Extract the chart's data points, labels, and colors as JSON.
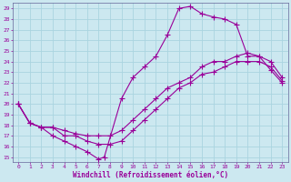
{
  "xlabel": "Windchill (Refroidissement éolien,°C)",
  "bg_color": "#cce8f0",
  "grid_color": "#aad4e0",
  "line_color": "#990099",
  "xlim": [
    -0.5,
    23.5
  ],
  "ylim": [
    14.5,
    29.5
  ],
  "xticks": [
    0,
    1,
    2,
    3,
    4,
    5,
    6,
    7,
    8,
    9,
    10,
    11,
    12,
    13,
    14,
    15,
    16,
    17,
    18,
    19,
    20,
    21,
    22,
    23
  ],
  "yticks": [
    15,
    16,
    17,
    18,
    19,
    20,
    21,
    22,
    23,
    24,
    25,
    26,
    27,
    28,
    29
  ],
  "line1_x": [
    0,
    1,
    2,
    3,
    4,
    5,
    6,
    7,
    7.5,
    9,
    10,
    11,
    12,
    13,
    14,
    15,
    16,
    17,
    18,
    19,
    20,
    21,
    22,
    23
  ],
  "line1_y": [
    20.0,
    18.2,
    17.8,
    17.0,
    16.5,
    16.0,
    15.5,
    14.8,
    15.0,
    20.5,
    22.5,
    23.5,
    24.5,
    26.5,
    29.0,
    29.2,
    28.5,
    28.2,
    28.0,
    27.5,
    24.5,
    24.5,
    23.2,
    22.0
  ],
  "line2_x": [
    0,
    1,
    2,
    3,
    4,
    5,
    6,
    7,
    8,
    9,
    10,
    11,
    12,
    13,
    14,
    15,
    16,
    17,
    18,
    19,
    20,
    21,
    22,
    23
  ],
  "line2_y": [
    20.0,
    18.2,
    17.8,
    17.8,
    17.0,
    17.0,
    16.5,
    16.2,
    16.2,
    16.5,
    17.5,
    18.5,
    19.5,
    20.5,
    21.5,
    22.0,
    22.8,
    23.0,
    23.5,
    24.0,
    24.0,
    24.0,
    23.5,
    22.2
  ],
  "line3_x": [
    0,
    1,
    2,
    3,
    4,
    5,
    6,
    7,
    8,
    9,
    10,
    11,
    12,
    13,
    14,
    15,
    16,
    17,
    18,
    19,
    20,
    21,
    22,
    23
  ],
  "line3_y": [
    20.0,
    18.2,
    17.8,
    17.8,
    17.5,
    17.2,
    17.0,
    17.0,
    17.0,
    17.5,
    18.5,
    19.5,
    20.5,
    21.5,
    22.0,
    22.5,
    23.5,
    24.0,
    24.0,
    24.5,
    24.8,
    24.5,
    24.0,
    22.5
  ]
}
